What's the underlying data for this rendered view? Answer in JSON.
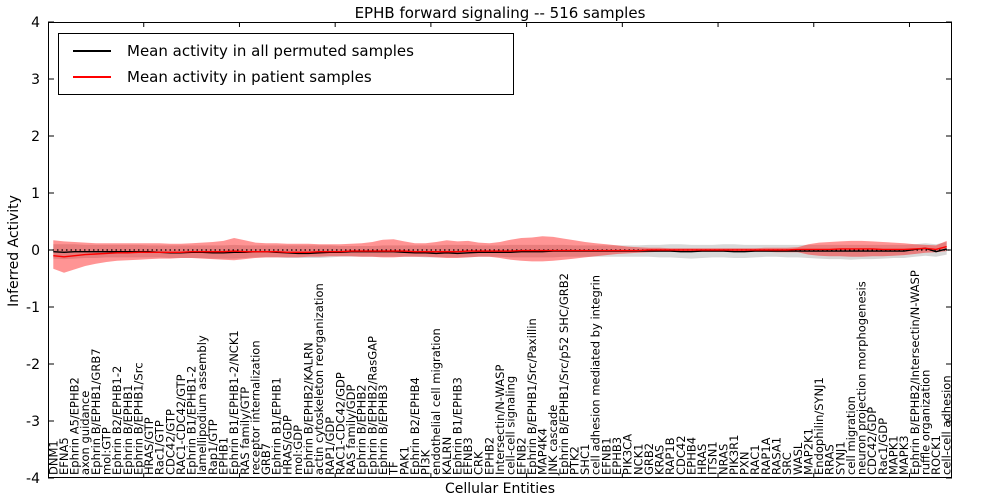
{
  "chart_data": {
    "type": "line",
    "title": "EPHB forward signaling -- 516 samples",
    "xlabel": "Cellular Entities",
    "ylabel": "Inferred Activity",
    "ylim": [
      -4,
      4
    ],
    "yticks": [
      -4,
      -3,
      -2,
      -1,
      0,
      1,
      2,
      3,
      4
    ],
    "grid": false,
    "legend_position": "upper left",
    "zero_line": {
      "style": "dotted",
      "color": "#000000",
      "y": 0
    },
    "categories": [
      "DNM1",
      "EFNA5",
      "Ephrin A5/EPHB2",
      "axon guidance",
      "Ephrin B/EPHB1/GRB7",
      "mol:GTP",
      "Ephrin B2/EPHB1-2",
      "Ephrin B/EPHB1",
      "Ephrin B/EPHB1/Src",
      "HRAS/GTP",
      "Rac1/GTP",
      "CDC42/GTP",
      "RAC1-CDC42/GTP",
      "Ephrin B1/EPHB1-2",
      "lamellipodium assembly",
      "Rap1/GTP",
      "EPHB1",
      "Ephrin B1/EPHB1-2/NCK1",
      "RAS family/GTP",
      "receptor internalization",
      "GRB7",
      "Ephrin B1/EPHB1",
      "HRAS/GDP",
      "mol:GDP",
      "Ephrin B/EPHB2/KALRN",
      "actin cytoskeleton reorganization",
      "RAP1/GDP",
      "RAC1-CDC42/GDP",
      "RAS family/GDP",
      "Ephrin B/EPHB2",
      "Ephrin B/EPHB2/RasGAP",
      "Ephrin B/EPHB3",
      "TF",
      "PAK1",
      "Ephrin B2/EPHB4",
      "PI3K",
      "endothelial cell migration",
      "KALRN",
      "Ephrin B1/EPHB3",
      "EFNB3",
      "CRK",
      "EPHB2",
      "Intersectin/N-WASP",
      "cell-cell signaling",
      "EFNB2",
      "Ephrin B/EPHB1/Src/Paxillin",
      "MAP4K4",
      "JNK cascade",
      "Ephrin B/EPHB1/Src/p52 SHC/GRB2",
      "PTK2",
      "SHC1",
      "cell adhesion mediated by integrin",
      "EFNB1",
      "EPHB3",
      "PIK3CA",
      "NCK1",
      "GRB2",
      "KRAS",
      "RAP1B",
      "CDC42",
      "EPHB4",
      "HRAS",
      "ITSN1",
      "NRAS",
      "PIK3R1",
      "PXN",
      "RAC1",
      "RAP1A",
      "RASA1",
      "SRC",
      "WASL",
      "MAP2K1",
      "Endophilin/SYNJ1",
      "RRAS",
      "SYNJ1",
      "cell migration",
      "neuron projection morphogenesis",
      "CDC42/GDP",
      "Rac1/GDP",
      "MAPK1",
      "MAPK3",
      "Ephrin B/EPHB2/Intersectin/N-WASP",
      "ruffle organization",
      "ROCK1",
      "cell-cell adhesion"
    ],
    "series": [
      {
        "name": "Mean activity in all permuted samples",
        "color": "#000000",
        "values": [
          -0.03,
          -0.04,
          -0.03,
          -0.03,
          -0.03,
          -0.03,
          -0.03,
          -0.03,
          -0.03,
          -0.03,
          -0.04,
          -0.05,
          -0.05,
          -0.04,
          -0.04,
          -0.05,
          -0.05,
          -0.04,
          -0.04,
          -0.03,
          -0.03,
          -0.04,
          -0.05,
          -0.06,
          -0.06,
          -0.05,
          -0.04,
          -0.04,
          -0.03,
          -0.03,
          -0.03,
          -0.03,
          -0.03,
          -0.04,
          -0.05,
          -0.05,
          -0.06,
          -0.05,
          -0.06,
          -0.05,
          -0.04,
          -0.04,
          -0.04,
          -0.04,
          -0.03,
          -0.03,
          -0.03,
          -0.02,
          -0.02,
          -0.02,
          -0.02,
          -0.02,
          -0.02,
          -0.02,
          -0.02,
          -0.02,
          -0.02,
          -0.02,
          -0.02,
          -0.03,
          -0.03,
          -0.02,
          -0.02,
          -0.02,
          -0.03,
          -0.03,
          -0.02,
          -0.02,
          -0.02,
          -0.02,
          -0.02,
          -0.02,
          -0.02,
          -0.02,
          -0.02,
          -0.02,
          -0.02,
          -0.02,
          -0.02,
          -0.02,
          -0.02,
          0.01,
          0.03,
          -0.03,
          0.02
        ]
      },
      {
        "name": "Mean activity in patient samples",
        "color": "#ff0000",
        "values": [
          -0.1,
          -0.12,
          -0.1,
          -0.08,
          -0.07,
          -0.06,
          -0.05,
          -0.05,
          -0.04,
          -0.04,
          -0.04,
          -0.04,
          -0.04,
          -0.03,
          -0.03,
          -0.03,
          -0.03,
          -0.02,
          -0.03,
          -0.03,
          -0.03,
          -0.03,
          -0.04,
          -0.04,
          -0.04,
          -0.03,
          -0.03,
          -0.03,
          -0.02,
          -0.02,
          -0.02,
          -0.02,
          -0.02,
          -0.02,
          -0.03,
          -0.03,
          -0.03,
          -0.03,
          -0.03,
          -0.02,
          -0.02,
          -0.02,
          -0.02,
          -0.02,
          -0.01,
          -0.01,
          -0.01,
          -0.01,
          -0.01,
          -0.01,
          -0.01,
          -0.01,
          -0.01,
          -0.01,
          -0.01,
          -0.01,
          0.0,
          0.0,
          0.0,
          0.0,
          0.0,
          0.0,
          0.0,
          0.0,
          0.0,
          0.0,
          0.0,
          0.0,
          0.0,
          0.0,
          0.01,
          0.01,
          0.01,
          0.01,
          0.02,
          0.02,
          0.02,
          0.02,
          0.01,
          0.01,
          0.01,
          0.02,
          0.03,
          0.01,
          0.06
        ]
      }
    ],
    "bands": [
      {
        "name": "permuted-range",
        "color": "rgba(125,125,125,0.30)",
        "upper": [
          0.1,
          0.1,
          0.1,
          0.09,
          0.09,
          0.09,
          0.09,
          0.09,
          0.09,
          0.08,
          0.08,
          0.08,
          0.08,
          0.08,
          0.08,
          0.08,
          0.08,
          0.09,
          0.08,
          0.08,
          0.08,
          0.08,
          0.08,
          0.08,
          0.08,
          0.08,
          0.08,
          0.07,
          0.07,
          0.07,
          0.07,
          0.08,
          0.08,
          0.08,
          0.08,
          0.08,
          0.08,
          0.09,
          0.09,
          0.09,
          0.08,
          0.08,
          0.08,
          0.09,
          0.09,
          0.09,
          0.09,
          0.09,
          0.09,
          0.08,
          0.08,
          0.08,
          0.08,
          0.08,
          0.08,
          0.08,
          0.09,
          0.09,
          0.1,
          0.1,
          0.09,
          0.09,
          0.09,
          0.1,
          0.1,
          0.09,
          0.09,
          0.09,
          0.09,
          0.09,
          0.09,
          0.09,
          0.09,
          0.09,
          0.09,
          0.09,
          0.09,
          0.09,
          0.09,
          0.09,
          0.09,
          0.1,
          0.12,
          0.1,
          0.14
        ],
        "lower": [
          -0.15,
          -0.16,
          -0.15,
          -0.14,
          -0.14,
          -0.13,
          -0.13,
          -0.13,
          -0.13,
          -0.13,
          -0.13,
          -0.14,
          -0.14,
          -0.14,
          -0.14,
          -0.15,
          -0.15,
          -0.15,
          -0.14,
          -0.13,
          -0.13,
          -0.13,
          -0.14,
          -0.14,
          -0.14,
          -0.14,
          -0.13,
          -0.12,
          -0.12,
          -0.12,
          -0.12,
          -0.12,
          -0.12,
          -0.12,
          -0.12,
          -0.13,
          -0.13,
          -0.13,
          -0.13,
          -0.13,
          -0.12,
          -0.12,
          -0.12,
          -0.13,
          -0.13,
          -0.13,
          -0.13,
          -0.13,
          -0.12,
          -0.12,
          -0.12,
          -0.12,
          -0.12,
          -0.12,
          -0.12,
          -0.12,
          -0.12,
          -0.13,
          -0.13,
          -0.14,
          -0.15,
          -0.14,
          -0.13,
          -0.13,
          -0.14,
          -0.14,
          -0.13,
          -0.12,
          -0.12,
          -0.13,
          -0.13,
          -0.14,
          -0.15,
          -0.16,
          -0.16,
          -0.17,
          -0.16,
          -0.16,
          -0.15,
          -0.14,
          -0.14,
          -0.12,
          -0.1,
          -0.12,
          -0.08
        ]
      },
      {
        "name": "patient-range",
        "color": "rgba(255,0,0,0.42)",
        "upper": [
          0.17,
          0.15,
          0.14,
          0.13,
          0.12,
          0.12,
          0.12,
          0.12,
          0.12,
          0.12,
          0.12,
          0.11,
          0.11,
          0.12,
          0.13,
          0.14,
          0.16,
          0.21,
          0.17,
          0.13,
          0.12,
          0.12,
          0.11,
          0.11,
          0.11,
          0.1,
          0.1,
          0.1,
          0.11,
          0.12,
          0.14,
          0.18,
          0.19,
          0.15,
          0.12,
          0.12,
          0.14,
          0.17,
          0.15,
          0.16,
          0.13,
          0.12,
          0.14,
          0.18,
          0.21,
          0.22,
          0.24,
          0.23,
          0.2,
          0.17,
          0.14,
          0.12,
          0.1,
          0.08,
          0.06,
          0.05,
          0.04,
          0.04,
          0.03,
          0.03,
          0.03,
          0.03,
          0.03,
          0.03,
          0.03,
          0.03,
          0.03,
          0.04,
          0.04,
          0.04,
          0.05,
          0.1,
          0.13,
          0.14,
          0.15,
          0.16,
          0.16,
          0.15,
          0.14,
          0.13,
          0.12,
          0.1,
          0.09,
          0.08,
          0.16
        ],
        "lower": [
          -0.33,
          -0.4,
          -0.34,
          -0.28,
          -0.24,
          -0.21,
          -0.19,
          -0.18,
          -0.17,
          -0.16,
          -0.15,
          -0.15,
          -0.14,
          -0.14,
          -0.15,
          -0.16,
          -0.17,
          -0.18,
          -0.16,
          -0.14,
          -0.13,
          -0.13,
          -0.13,
          -0.13,
          -0.12,
          -0.12,
          -0.11,
          -0.11,
          -0.11,
          -0.12,
          -0.12,
          -0.13,
          -0.13,
          -0.12,
          -0.12,
          -0.12,
          -0.13,
          -0.14,
          -0.14,
          -0.13,
          -0.12,
          -0.12,
          -0.14,
          -0.17,
          -0.19,
          -0.2,
          -0.2,
          -0.19,
          -0.17,
          -0.15,
          -0.13,
          -0.11,
          -0.09,
          -0.07,
          -0.06,
          -0.05,
          -0.04,
          -0.03,
          -0.03,
          -0.03,
          -0.03,
          -0.03,
          -0.03,
          -0.03,
          -0.03,
          -0.03,
          -0.03,
          -0.03,
          -0.04,
          -0.04,
          -0.04,
          -0.08,
          -0.1,
          -0.11,
          -0.11,
          -0.12,
          -0.12,
          -0.11,
          -0.11,
          -0.1,
          -0.09,
          -0.07,
          -0.05,
          -0.04,
          -0.02
        ]
      }
    ]
  }
}
